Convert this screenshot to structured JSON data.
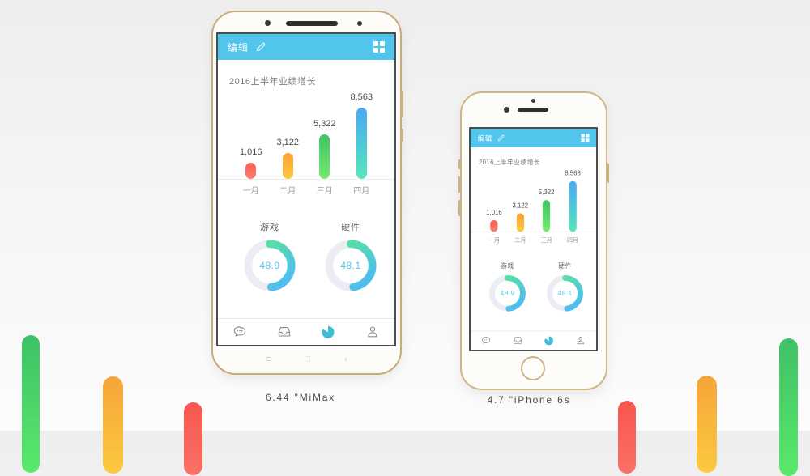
{
  "palette": {
    "header_blue": "#51c5ec",
    "nav_active": "#41bcd5",
    "nav_inactive": "#8b8b8b",
    "donut_track": "#ecedf4",
    "donut_gradient_start": "#58dfa6",
    "donut_gradient_end": "#4fbdf0",
    "decor_green": [
      "#3ec167",
      "#5ae96b"
    ],
    "decor_orange": [
      "#f6a439",
      "#fbca3e"
    ],
    "decor_red": [
      "#f8564e",
      "#fa7166"
    ]
  },
  "app": {
    "header": {
      "edit_label": "编辑",
      "edit_icon": "pencil-icon",
      "menu_icon": "grid-icon"
    },
    "chart_title": "2016上半年业绩增长",
    "nav": {
      "items": [
        {
          "icon": "chat-bubble-icon",
          "active": false
        },
        {
          "icon": "inbox-icon",
          "active": false
        },
        {
          "icon": "pie-chart-icon",
          "active": true
        },
        {
          "icon": "person-icon",
          "active": false
        }
      ]
    }
  },
  "mimax_buttons": {
    "menu": "≡",
    "home": "□",
    "back": "‹"
  },
  "captions": {
    "mimax": "6.44 \"MiMax",
    "iphone": "4.7 \"iPhone 6s"
  },
  "chart_data": [
    {
      "type": "bar",
      "title": "2016上半年业绩增长",
      "categories": [
        "一月",
        "二月",
        "三月",
        "四月"
      ],
      "values": [
        1016,
        3122,
        5322,
        8563
      ],
      "value_labels": [
        "1,016",
        "3,122",
        "5,322",
        "8,563"
      ],
      "bar_colors": [
        [
          "#f75f57",
          "#fa7d6d"
        ],
        [
          "#f9a138",
          "#fcca3e"
        ],
        [
          "#3fc468",
          "#74ec6c"
        ],
        [
          "#49a9f4",
          "#57e6ba"
        ]
      ],
      "xlabel": "",
      "ylabel": "",
      "ylim": [
        0,
        8563
      ],
      "grid": false,
      "legend": false
    },
    {
      "type": "donut",
      "title": "游戏",
      "value": 48.9,
      "label": "48.9",
      "max": 100
    },
    {
      "type": "donut",
      "title": "硬件",
      "value": 48.1,
      "label": "48.1",
      "max": 100
    }
  ]
}
